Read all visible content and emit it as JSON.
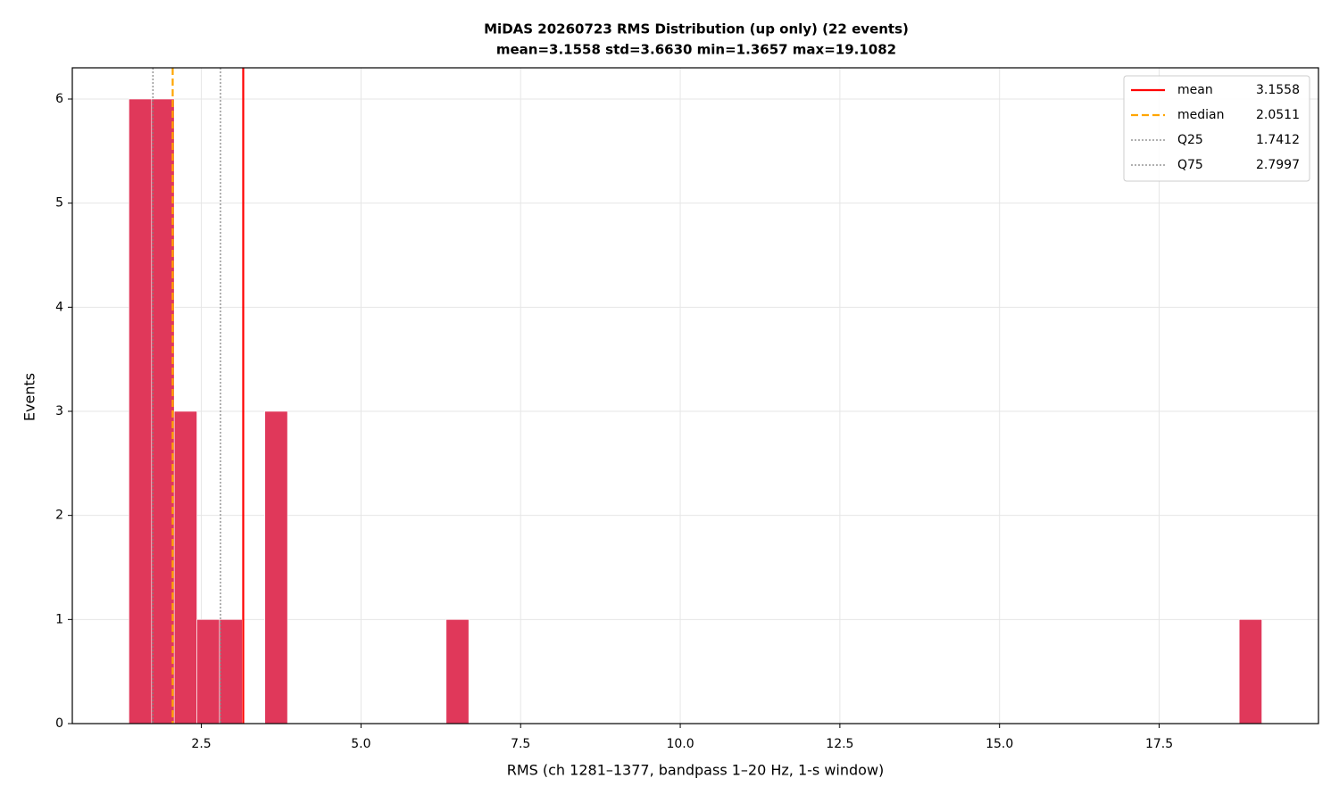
{
  "chart_data": {
    "type": "histogram",
    "title": "MiDAS 20260723  RMS Distribution  (up only)  (22 events)",
    "subtitle": "mean=3.1558  std=3.6630  min=1.3657  max=19.1082",
    "x_label": "RMS  (ch 1281–1377, bandpass 1–20 Hz, 1-s window)",
    "y_label": "Events",
    "color": "#e0385a",
    "bins": [
      1.3657,
      1.72055,
      2.0754,
      2.43025,
      2.7851,
      3.13995,
      3.4948,
      3.84965,
      4.2045,
      4.55935,
      4.9142,
      5.26905,
      5.6239,
      5.97875,
      6.3336,
      6.68845,
      7.0433,
      7.39815,
      7.753,
      8.10785,
      8.4627,
      8.81755,
      9.1724,
      9.52725,
      9.8821,
      10.23695,
      10.5918,
      10.94665,
      11.3015,
      11.65635,
      12.0112,
      12.36605,
      12.7209,
      13.07575,
      13.4306,
      13.78545,
      14.1403,
      14.49515,
      14.85,
      15.20485,
      15.5597,
      15.91455,
      16.2694,
      16.62425,
      16.9791,
      17.33395,
      17.6888,
      18.04365,
      18.3985,
      18.75335,
      19.1082
    ],
    "counts": [
      6,
      6,
      3,
      1,
      1,
      0,
      3,
      0,
      0,
      0,
      0,
      0,
      0,
      0,
      1,
      0,
      0,
      0,
      0,
      0,
      0,
      0,
      0,
      0,
      0,
      0,
      0,
      0,
      0,
      0,
      0,
      0,
      0,
      0,
      0,
      0,
      0,
      0,
      0,
      0,
      0,
      0,
      0,
      0,
      0,
      0,
      0,
      0,
      0,
      1
    ],
    "xlim": [
      0.479,
      19.995
    ],
    "xticks": [
      2.5,
      {
        "value": 5,
        "label": "5.0"
      },
      7.5,
      {
        "value": 10,
        "label": "10.0"
      },
      12.5,
      {
        "value": 15,
        "label": "15.0"
      },
      17.5
    ],
    "ylim": [
      0,
      6.3
    ],
    "yticks": [
      0,
      1,
      2,
      3,
      4,
      5,
      6
    ],
    "grid": true,
    "legend": "upper right",
    "vlines": [
      {
        "name": "mean",
        "value": 3.1558,
        "color": "#ff0000",
        "style": "solid"
      },
      {
        "name": "median",
        "value": 2.0511,
        "color": "#ffa500",
        "style": "dashed"
      },
      {
        "name": "Q25",
        "value": 1.7412,
        "color": "#808080",
        "style": "dotted"
      },
      {
        "name": "Q75",
        "value": 2.7997,
        "color": "#808080",
        "style": "dotted"
      }
    ]
  }
}
